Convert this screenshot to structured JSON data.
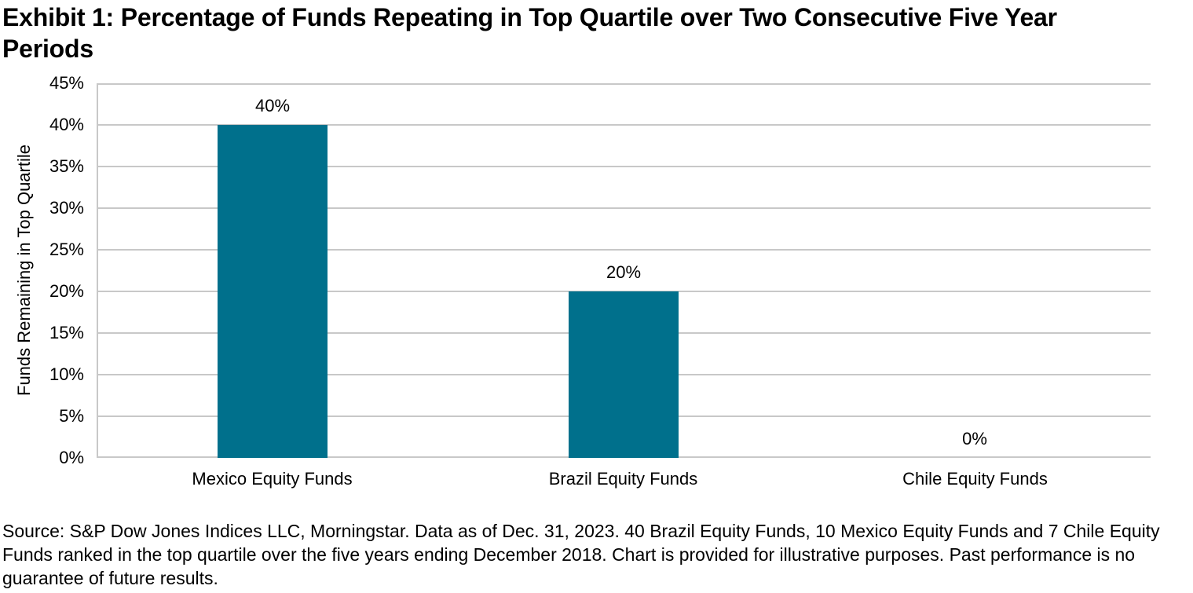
{
  "title": "Exhibit 1: Percentage of Funds Repeating in Top Quartile over Two Consecutive Five Year Periods",
  "source_note": "Source: S&P Dow Jones Indices LLC, Morningstar. Data as of Dec. 31, 2023. 40 Brazil Equity Funds, 10 Mexico Equity Funds and 7 Chile Equity Funds ranked in the top quartile over the five years ending December 2018. Chart is provided for illustrative purposes. Past performance is no guarantee of future results.",
  "colors": {
    "bar": "#00708c",
    "gridline": "#c8c8c8",
    "text": "#000000",
    "background": "#ffffff"
  },
  "chart_data": {
    "type": "bar",
    "title": "Exhibit 1: Percentage of Funds Repeating in Top Quartile over Two Consecutive Five Year Periods",
    "categories": [
      "Mexico Equity Funds",
      "Brazil Equity Funds",
      "Chile Equity Funds"
    ],
    "values": [
      40,
      20,
      0
    ],
    "data_labels": [
      "40%",
      "20%",
      "0%"
    ],
    "xlabel": "",
    "ylabel": "Funds Remaining in Top Quartile",
    "ylim": [
      0,
      45
    ],
    "ytick_step": 5,
    "ytick_labels": [
      "0%",
      "5%",
      "10%",
      "15%",
      "20%",
      "25%",
      "30%",
      "35%",
      "40%",
      "45%"
    ],
    "grid": true,
    "legend_position": "none",
    "bar_color": "#00708c"
  }
}
